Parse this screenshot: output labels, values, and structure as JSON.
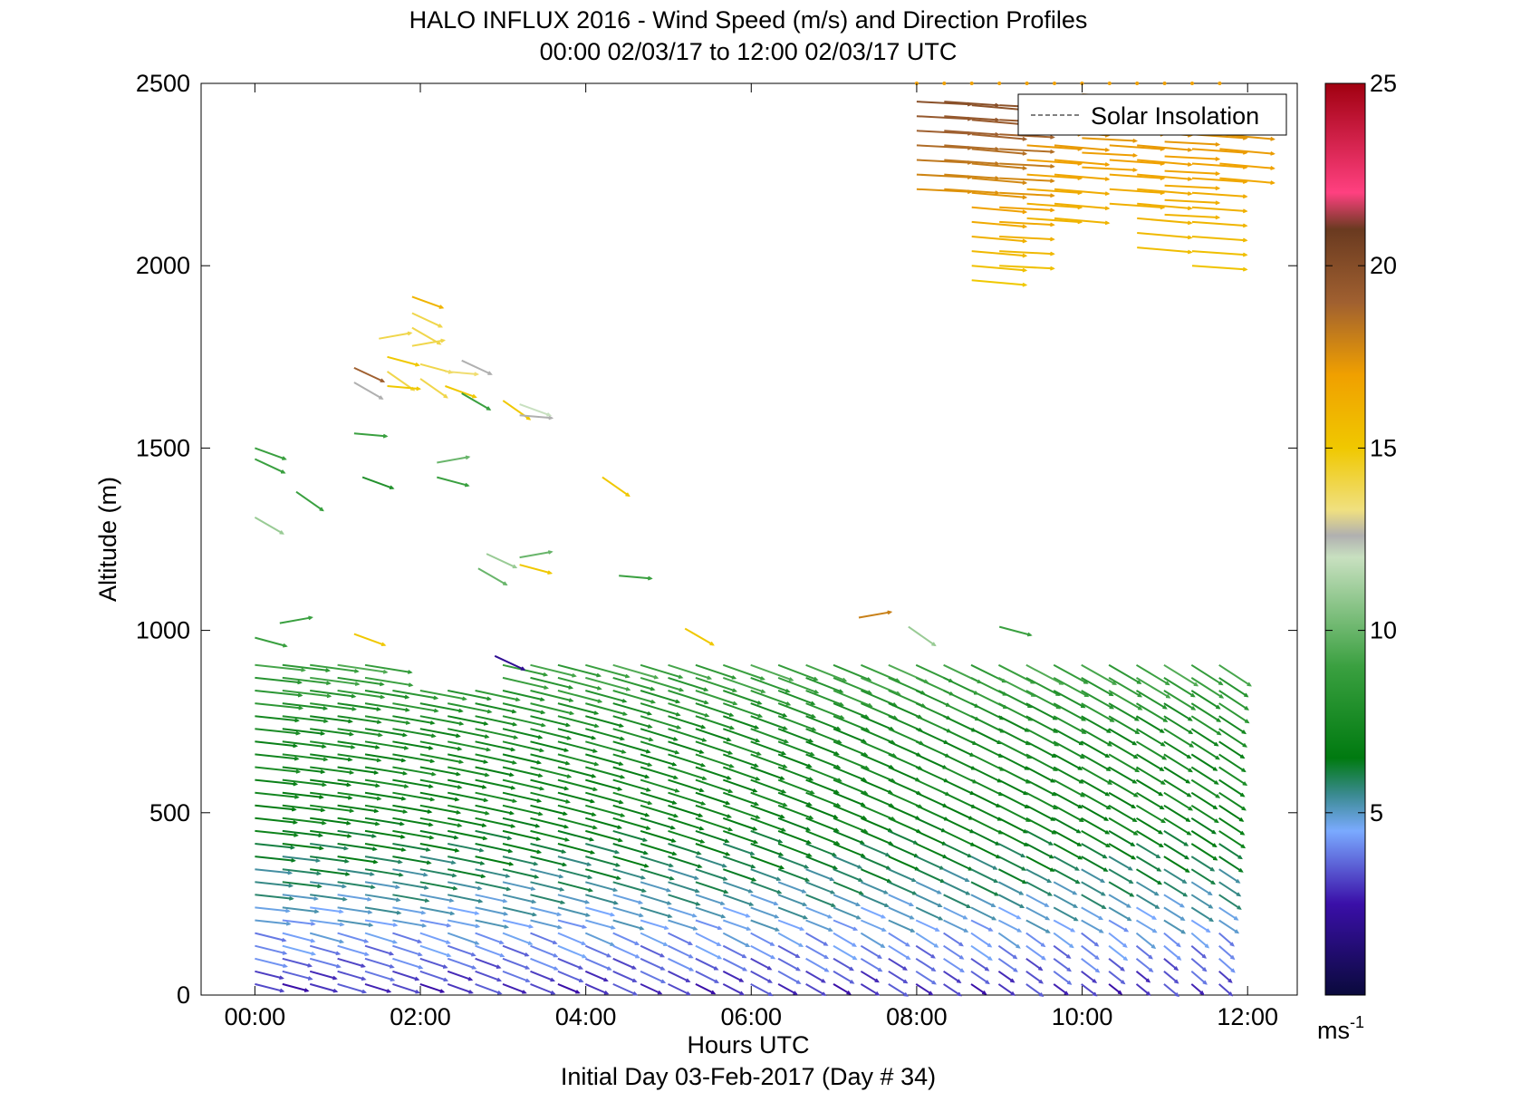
{
  "chart_data": {
    "type": "quiver",
    "title": "HALO INFLUX 2016 - Wind Speed (m/s) and Direction Profiles",
    "subtitle": "00:00 02/03/17 to 12:00 02/03/17  UTC",
    "xlabel": "Hours UTC",
    "footer": "Initial Day 03-Feb-2017 (Day # 34)",
    "ylabel": "Altitude (m)",
    "x_ticks": [
      "00:00",
      "02:00",
      "04:00",
      "06:00",
      "08:00",
      "10:00",
      "12:00"
    ],
    "x_tick_hours": [
      0,
      2,
      4,
      6,
      8,
      10,
      12
    ],
    "xlim_hours": [
      -0.65,
      12.6
    ],
    "ylim": [
      0,
      2500
    ],
    "y_ticks": [
      0,
      500,
      1000,
      1500,
      2000,
      2500
    ],
    "legend": {
      "label": "Solar Insolation",
      "placement": "top-right",
      "style": "dashed"
    },
    "colorbar": {
      "range": [
        0,
        25
      ],
      "ticks": [
        5,
        10,
        15,
        20,
        25
      ],
      "unit_label": "ms",
      "unit_exponent": "-1",
      "stops": [
        {
          "v": 0,
          "c": "#0a0a3c"
        },
        {
          "v": 2.5,
          "c": "#3a0fa8"
        },
        {
          "v": 4.5,
          "c": "#7aaaff"
        },
        {
          "v": 5.5,
          "c": "#3a8a90"
        },
        {
          "v": 6.5,
          "c": "#007a10"
        },
        {
          "v": 9,
          "c": "#3aa040"
        },
        {
          "v": 12,
          "c": "#c8e0c0"
        },
        {
          "v": 12.6,
          "c": "#b0b0b0"
        },
        {
          "v": 13.3,
          "c": "#f0e080"
        },
        {
          "v": 15,
          "c": "#f0c800"
        },
        {
          "v": 17,
          "c": "#f0a000"
        },
        {
          "v": 19,
          "c": "#a06030"
        },
        {
          "v": 21,
          "c": "#6a3a20"
        },
        {
          "v": 22,
          "c": "#ff4080"
        },
        {
          "v": 25,
          "c": "#a00010"
        }
      ]
    },
    "lower_layer": {
      "time_start_h": 0,
      "time_end_h": 11.67,
      "time_step_h": 0.333,
      "alt_start_m": 30,
      "alt_step_m": 35,
      "top_m": [
        910,
        910,
        910,
        910,
        910,
        840,
        840,
        840,
        840,
        910,
        910,
        910,
        910,
        910,
        910,
        910,
        910,
        910,
        910,
        910,
        910,
        910,
        910,
        910,
        910,
        910,
        910,
        910,
        910,
        910,
        910,
        910,
        910,
        910,
        910,
        910
      ],
      "speed_profile": [
        {
          "alt": 30,
          "speed": 3.0
        },
        {
          "alt": 150,
          "speed": 4.2
        },
        {
          "alt": 300,
          "speed": 5.5
        },
        {
          "alt": 500,
          "speed": 7.0
        },
        {
          "alt": 750,
          "speed": 7.5
        },
        {
          "alt": 900,
          "speed": 9.0
        }
      ],
      "direction_note": "early hours westerly near-horizontal arrows, later hours north-westerly steeper arrows"
    },
    "upper_layer": {
      "time_start_h": 8.0,
      "time_end_h": 11.67,
      "time_step_h": 0.333,
      "alt_bottom_m": [
        2210,
        2210,
        1960,
        2000,
        2130,
        2130,
        2270,
        2170,
        2050,
        2140,
        2000,
        2240
      ],
      "alt_top_m": 2470,
      "alt_step_m": 40,
      "speed_range": [
        15,
        20
      ],
      "topmost_row": {
        "alt": 2500,
        "speed": 17
      }
    },
    "scattered_points": [
      {
        "t": 0.0,
        "alt": 1500,
        "speed": 9
      },
      {
        "t": 0.0,
        "alt": 1470,
        "speed": 9
      },
      {
        "t": 0.0,
        "alt": 1310,
        "speed": 11
      },
      {
        "t": 0.3,
        "alt": 1020,
        "speed": 9
      },
      {
        "t": 0.0,
        "alt": 980,
        "speed": 9
      },
      {
        "t": 0.5,
        "alt": 1380,
        "speed": 9
      },
      {
        "t": 1.2,
        "alt": 1540,
        "speed": 9
      },
      {
        "t": 1.3,
        "alt": 1420,
        "speed": 8
      },
      {
        "t": 1.2,
        "alt": 1720,
        "speed": 19
      },
      {
        "t": 1.2,
        "alt": 1680,
        "speed": 12.6
      },
      {
        "t": 1.5,
        "alt": 1800,
        "speed": 14
      },
      {
        "t": 1.6,
        "alt": 1750,
        "speed": 15
      },
      {
        "t": 1.6,
        "alt": 1710,
        "speed": 14
      },
      {
        "t": 1.6,
        "alt": 1670,
        "speed": 15
      },
      {
        "t": 1.9,
        "alt": 1915,
        "speed": 16
      },
      {
        "t": 1.9,
        "alt": 1870,
        "speed": 14
      },
      {
        "t": 1.9,
        "alt": 1830,
        "speed": 14
      },
      {
        "t": 1.9,
        "alt": 1780,
        "speed": 14
      },
      {
        "t": 2.0,
        "alt": 1730,
        "speed": 14
      },
      {
        "t": 2.0,
        "alt": 1690,
        "speed": 14
      },
      {
        "t": 2.3,
        "alt": 1710,
        "speed": 13.5
      },
      {
        "t": 2.3,
        "alt": 1670,
        "speed": 15
      },
      {
        "t": 2.5,
        "alt": 1740,
        "speed": 12.6
      },
      {
        "t": 2.5,
        "alt": 1650,
        "speed": 9
      },
      {
        "t": 2.2,
        "alt": 1460,
        "speed": 10
      },
      {
        "t": 2.2,
        "alt": 1420,
        "speed": 9
      },
      {
        "t": 3.0,
        "alt": 1630,
        "speed": 15
      },
      {
        "t": 3.2,
        "alt": 1590,
        "speed": 12.6
      },
      {
        "t": 3.2,
        "alt": 1620,
        "speed": 12
      },
      {
        "t": 2.8,
        "alt": 1210,
        "speed": 11
      },
      {
        "t": 2.7,
        "alt": 1170,
        "speed": 10
      },
      {
        "t": 3.2,
        "alt": 1200,
        "speed": 10
      },
      {
        "t": 3.2,
        "alt": 1180,
        "speed": 15
      },
      {
        "t": 4.2,
        "alt": 1420,
        "speed": 15
      },
      {
        "t": 4.4,
        "alt": 1150,
        "speed": 9
      },
      {
        "t": 1.2,
        "alt": 990,
        "speed": 15
      },
      {
        "t": 2.9,
        "alt": 930,
        "speed": 2
      },
      {
        "t": 5.2,
        "alt": 1005,
        "speed": 15
      },
      {
        "t": 7.3,
        "alt": 1035,
        "speed": 18
      },
      {
        "t": 9.0,
        "alt": 1010,
        "speed": 9
      },
      {
        "t": 7.9,
        "alt": 1010,
        "speed": 11
      }
    ]
  }
}
